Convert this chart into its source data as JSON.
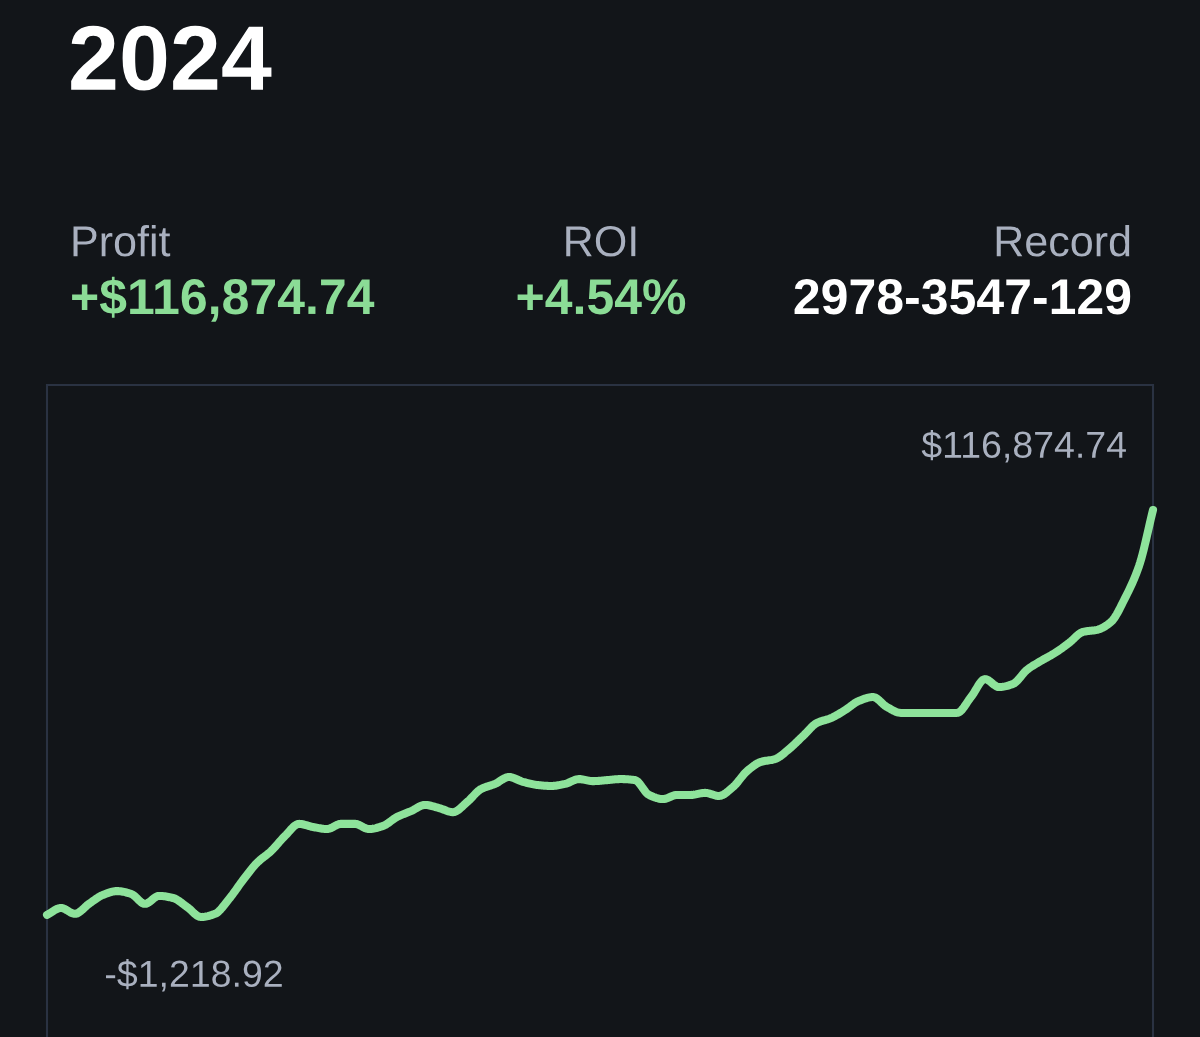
{
  "chart_data": {
    "type": "line",
    "title": "2024",
    "annotations": [
      "Profit",
      "+$116,874.74",
      "ROI",
      "+4.54%",
      "Record",
      "2978-3547-129"
    ],
    "tick_labels": false,
    "categories": [
      null,
      null,
      null,
      null,
      null,
      null,
      null,
      null,
      null,
      null,
      null,
      null,
      null,
      null,
      null,
      null,
      null,
      null,
      null,
      null,
      null,
      null,
      null,
      null,
      null,
      null,
      null,
      null,
      null,
      null,
      null,
      null,
      null,
      null,
      null,
      null,
      null,
      null,
      null,
      null,
      null,
      null,
      null,
      null,
      null,
      null,
      null,
      null,
      null,
      null,
      null,
      null,
      null,
      null,
      null,
      null,
      null,
      null,
      null,
      null,
      null,
      null,
      null,
      null,
      null,
      null,
      null,
      null,
      null,
      null,
      null,
      null,
      null,
      null,
      null,
      null,
      null,
      null,
      null,
      null
    ],
    "series": [
      {
        "color": "#8ee39b",
        "values": [
          -600,
          1400,
          -300,
          2600,
          5200,
          6300,
          5500,
          2600,
          4900,
          4300,
          1700,
          -1218.92,
          -300,
          4000,
          9500,
          14500,
          17900,
          22300,
          25800,
          24900,
          24300,
          25800,
          25800,
          24300,
          25200,
          27800,
          29500,
          31300,
          30400,
          29200,
          32100,
          35900,
          37400,
          39400,
          38000,
          37100,
          36800,
          37400,
          38800,
          38200,
          38500,
          38800,
          38500,
          34200,
          33000,
          34200,
          34200,
          34800,
          33900,
          36500,
          41100,
          43800,
          44600,
          47500,
          51300,
          55100,
          56500,
          58800,
          61500,
          62600,
          59700,
          58000,
          58000,
          58000,
          58000,
          58000,
          62600,
          67800,
          65500,
          66400,
          70500,
          73100,
          75400,
          78300,
          81500,
          82100,
          84400,
          91300,
          100600,
          116874.74
        ],
        "value_labels": [
          null,
          null,
          null,
          null,
          null,
          null,
          null,
          null,
          null,
          null,
          null,
          "-$1,218.92",
          null,
          null,
          null,
          null,
          null,
          null,
          null,
          null,
          null,
          null,
          null,
          null,
          null,
          null,
          null,
          null,
          null,
          null,
          null,
          null,
          null,
          null,
          null,
          null,
          null,
          null,
          null,
          null,
          null,
          null,
          null,
          null,
          null,
          null,
          null,
          null,
          null,
          null,
          null,
          null,
          null,
          null,
          null,
          null,
          null,
          null,
          null,
          null,
          null,
          null,
          null,
          null,
          null,
          null,
          null,
          null,
          null,
          null,
          null,
          null,
          null,
          null,
          null,
          null,
          null,
          null,
          null,
          "$116,874.74"
        ]
      }
    ]
  }
}
